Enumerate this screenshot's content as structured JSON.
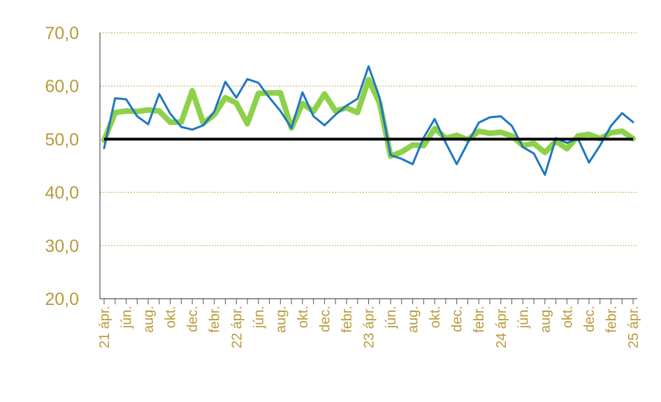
{
  "chart_data": {
    "type": "line",
    "title": "",
    "xlabel": "",
    "ylabel": "",
    "ylim": [
      20,
      70
    ],
    "yticks": [
      "20,0",
      "30,0",
      "40,0",
      "50,0",
      "60,0",
      "70,0"
    ],
    "grid": true,
    "legend": "none",
    "x_tick_labels": [
      "21 ápr.",
      "jún.",
      "aug.",
      "okt.",
      "dec.",
      "febr.",
      "22 ápr.",
      "jún.",
      "aug.",
      "okt.",
      "dec.",
      "febr.",
      "23 ápr.",
      "jún.",
      "aug.",
      "okt.",
      "dec.",
      "febr.",
      "24 ápr.",
      "jún.",
      "aug.",
      "okt.",
      "dec.",
      "febr.",
      "25 ápr."
    ],
    "x": [
      "2021-04",
      "2021-05",
      "2021-06",
      "2021-07",
      "2021-08",
      "2021-09",
      "2021-10",
      "2021-11",
      "2021-12",
      "2022-01",
      "2022-02",
      "2022-03",
      "2022-04",
      "2022-05",
      "2022-06",
      "2022-07",
      "2022-08",
      "2022-09",
      "2022-10",
      "2022-11",
      "2022-12",
      "2023-01",
      "2023-02",
      "2023-03",
      "2023-04",
      "2023-05",
      "2023-06",
      "2023-07",
      "2023-08",
      "2023-09",
      "2023-10",
      "2023-11",
      "2023-12",
      "2024-01",
      "2024-02",
      "2024-03",
      "2024-04",
      "2024-05",
      "2024-06",
      "2024-07",
      "2024-08",
      "2024-09",
      "2024-10",
      "2024-11",
      "2024-12",
      "2025-01",
      "2025-02",
      "2025-03",
      "2025-04"
    ],
    "series": [
      {
        "color": "#1f77c0",
        "values": [
          48.3,
          57.7,
          57.5,
          54.3,
          52.8,
          58.5,
          54.8,
          52.3,
          51.8,
          52.6,
          55.2,
          60.8,
          57.8,
          61.3,
          60.6,
          57.8,
          55.3,
          52.1,
          58.8,
          54.3,
          52.6,
          54.6,
          56.3,
          57.6,
          63.7,
          57.8,
          47.0,
          46.3,
          45.3,
          50.3,
          53.8,
          49.3,
          45.3,
          49.3,
          53.1,
          54.1,
          54.3,
          52.5,
          48.5,
          47.3,
          43.3,
          50.2,
          49.3,
          50.1,
          45.6,
          48.8,
          52.5,
          54.9,
          53.2
        ]
      },
      {
        "color": "#8dd14a",
        "values": [
          49.8,
          55.0,
          55.3,
          55.2,
          55.5,
          55.3,
          53.2,
          53.2,
          59.1,
          53.0,
          54.6,
          57.8,
          56.8,
          52.9,
          58.6,
          58.7,
          58.7,
          52.1,
          56.7,
          55.2,
          58.5,
          55.3,
          55.9,
          55.0,
          61.2,
          56.8,
          46.8,
          47.6,
          48.9,
          48.8,
          52.0,
          50.2,
          50.7,
          49.9,
          51.5,
          51.1,
          51.3,
          50.6,
          48.8,
          49.2,
          47.5,
          49.6,
          48.2,
          50.6,
          50.9,
          50.1,
          51.2,
          51.5,
          50.1
        ]
      }
    ],
    "reference_line": {
      "value": 50,
      "color": "#000000"
    },
    "colors": {
      "axis_text": "#b89a3a",
      "gridline": "#c9a64a",
      "axis": "#555555"
    }
  }
}
